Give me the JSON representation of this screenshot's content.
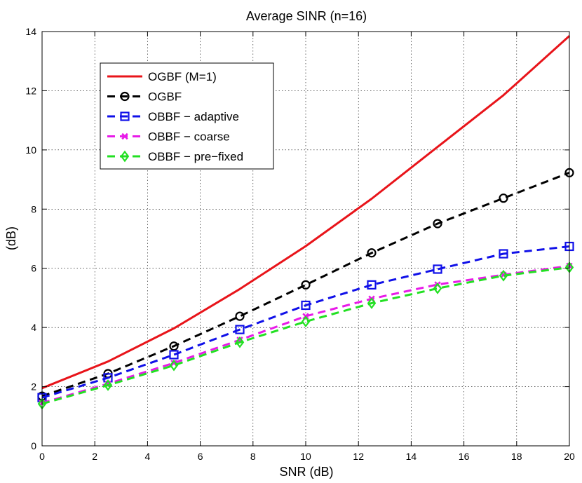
{
  "chart_data": {
    "type": "line",
    "title": "Average SINR (n=16)",
    "xlabel": "SNR (dB)",
    "ylabel": "(dB)",
    "xlim": [
      0,
      20
    ],
    "ylim": [
      0,
      14
    ],
    "xticks": [
      "0",
      "2",
      "4",
      "6",
      "8",
      "10",
      "12",
      "14",
      "16",
      "18",
      "20"
    ],
    "yticks": [
      "0",
      "2",
      "4",
      "6",
      "8",
      "10",
      "12",
      "14"
    ],
    "grid": true,
    "legend_position": "top-left",
    "x": [
      0,
      2.5,
      5,
      7.5,
      10,
      12.5,
      15,
      17.5,
      20
    ],
    "series": [
      {
        "name": "OGBF (M=1)",
        "color": "#e8141a",
        "dash": "solid",
        "marker": "none",
        "values": [
          1.95,
          2.85,
          3.97,
          5.3,
          6.75,
          8.35,
          10.1,
          11.85,
          13.85
        ]
      },
      {
        "name": "OGBF",
        "color": "#000000",
        "dash": "dashed",
        "marker": "circle",
        "values": [
          1.68,
          2.44,
          3.37,
          4.38,
          5.44,
          6.52,
          7.51,
          8.37,
          9.23
        ]
      },
      {
        "name": "OBBF − adaptive",
        "color": "#1010e8",
        "dash": "dashed",
        "marker": "square",
        "values": [
          1.63,
          2.3,
          3.08,
          3.93,
          4.75,
          5.44,
          5.97,
          6.49,
          6.74
        ]
      },
      {
        "name": "OBBF − coarse",
        "color": "#e81ae8",
        "dash": "dashed",
        "marker": "x",
        "values": [
          1.45,
          2.1,
          2.8,
          3.58,
          4.38,
          4.97,
          5.45,
          5.78,
          6.08
        ]
      },
      {
        "name": "OBBF − pre−fixed",
        "color": "#22e022",
        "dash": "dashed",
        "marker": "diamond",
        "values": [
          1.42,
          2.05,
          2.72,
          3.5,
          4.2,
          4.82,
          5.32,
          5.75,
          6.03
        ]
      }
    ]
  }
}
